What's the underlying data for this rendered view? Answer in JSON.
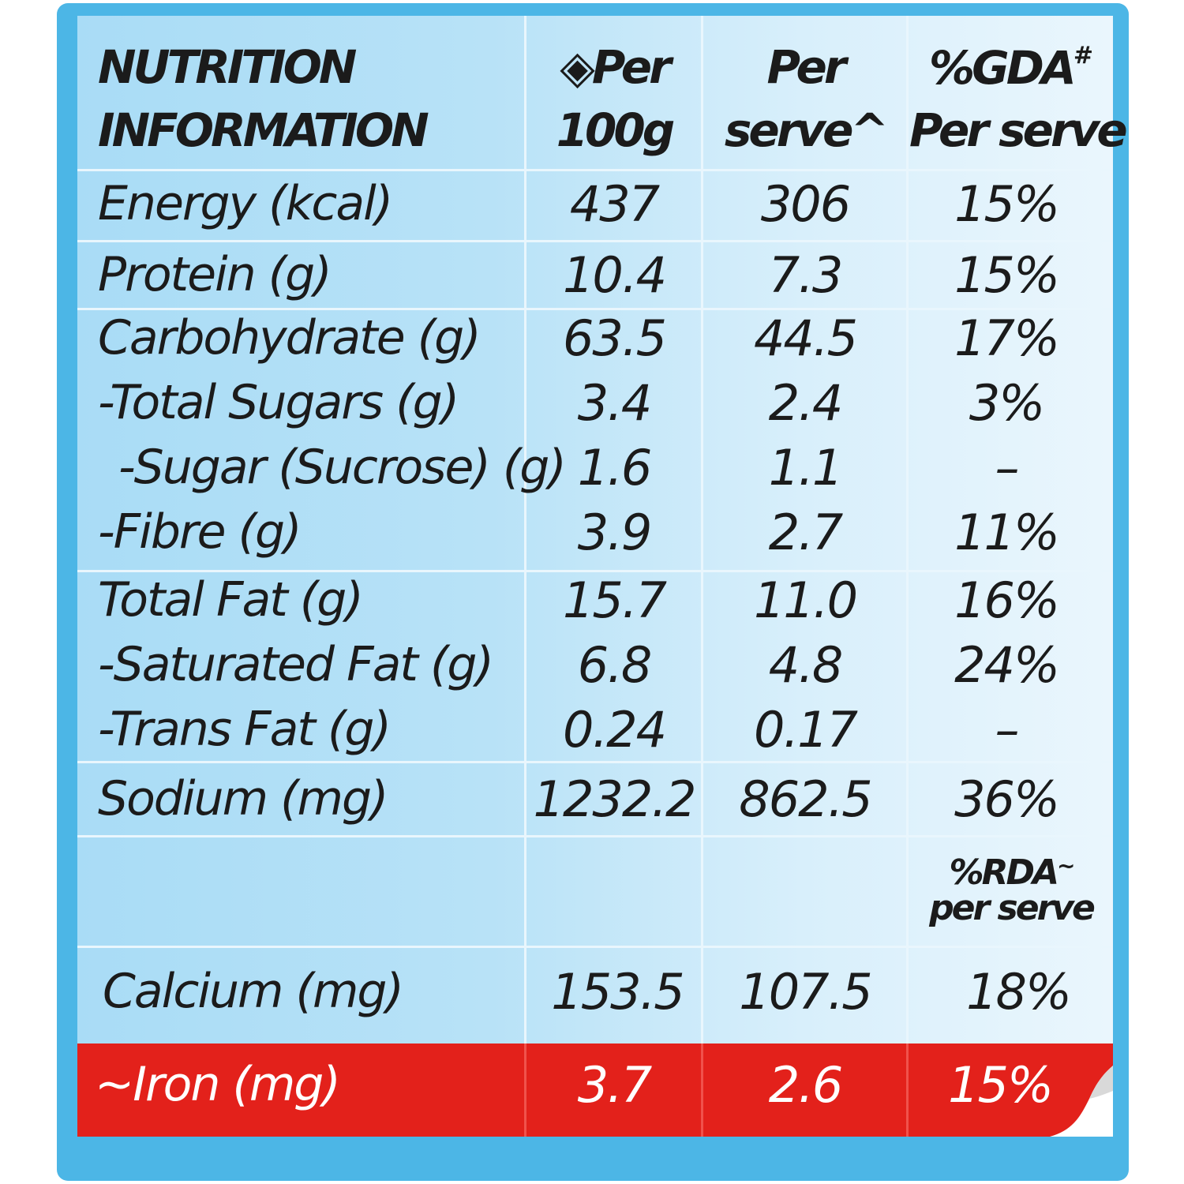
{
  "header": {
    "nutrient": [
      "NUTRITION",
      "INFORMATION"
    ],
    "col1": [
      "◈Per",
      "100g"
    ],
    "col2": [
      "Per",
      "serve^"
    ],
    "col3_line1": "%GDA",
    "col3_line1_sup": "#",
    "col3_line2": "Per serve"
  },
  "rows": [
    {
      "label": "Energy (kcal)",
      "per100g": "437",
      "perServe": "306",
      "pct": "15%"
    },
    {
      "label": "Protein (g)",
      "per100g": "10.4",
      "perServe": "7.3",
      "pct": "15%"
    },
    {
      "label": "Carbohydrate (g)",
      "per100g": "63.5",
      "perServe": "44.5",
      "pct": "17%"
    },
    {
      "label": "-Total Sugars (g)",
      "per100g": "3.4",
      "perServe": "2.4",
      "pct": "3%"
    },
    {
      "label": "-Sugar (Sucrose) (g)",
      "per100g": "1.6",
      "perServe": "1.1",
      "pct": "–"
    },
    {
      "label": "-Fibre (g)",
      "per100g": "3.9",
      "perServe": "2.7",
      "pct": "11%"
    },
    {
      "label": "Total Fat (g)",
      "per100g": "15.7",
      "perServe": "11.0",
      "pct": "16%"
    },
    {
      "label": "-Saturated Fat (g)",
      "per100g": "6.8",
      "perServe": "4.8",
      "pct": "24%"
    },
    {
      "label": "-Trans Fat (g)",
      "per100g": "0.24",
      "perServe": "0.17",
      "pct": "–"
    },
    {
      "label": "Sodium (mg)",
      "per100g": "1232.2",
      "perServe": "862.5",
      "pct": "36%"
    }
  ],
  "rda_header": {
    "line1": "%RDA",
    "line1_sup": "~",
    "line2": "per serve"
  },
  "calcium": {
    "label": "Calcium (mg)",
    "per100g": "153.5",
    "perServe": "107.5",
    "pct": "18%"
  },
  "iron": {
    "label": "~Iron (mg)",
    "per100g": "3.7",
    "perServe": "2.6",
    "pct": "15%"
  },
  "colors": {
    "frame": "#4cb6e6",
    "panel": "#b8e2f7",
    "iron_band": "#e3211b",
    "text": "#1b1b1b"
  }
}
